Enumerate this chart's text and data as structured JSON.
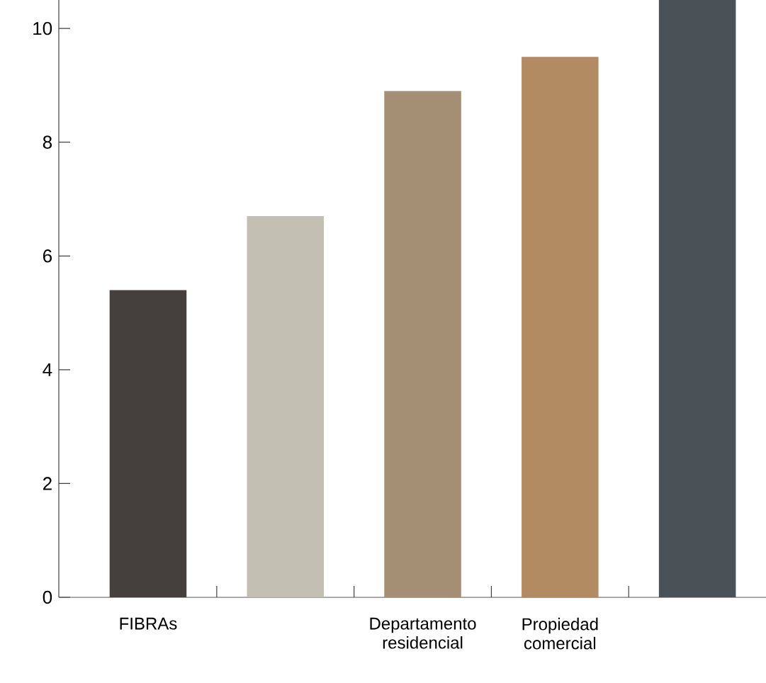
{
  "chart_data": {
    "type": "bar",
    "categories": [
      "FIBRAs",
      null,
      "Departamento residencial",
      "Propiedad comercial",
      null
    ],
    "values": [
      5.4,
      6.7,
      8.9,
      9.5,
      10.5
    ],
    "colors": [
      "#45403d",
      "#c3c0b3",
      "#a48f75",
      "#b38b63",
      "#4a5157"
    ],
    "ylim": [
      0,
      10.5
    ],
    "yticks": [
      0,
      2,
      4,
      6,
      8,
      10
    ]
  }
}
